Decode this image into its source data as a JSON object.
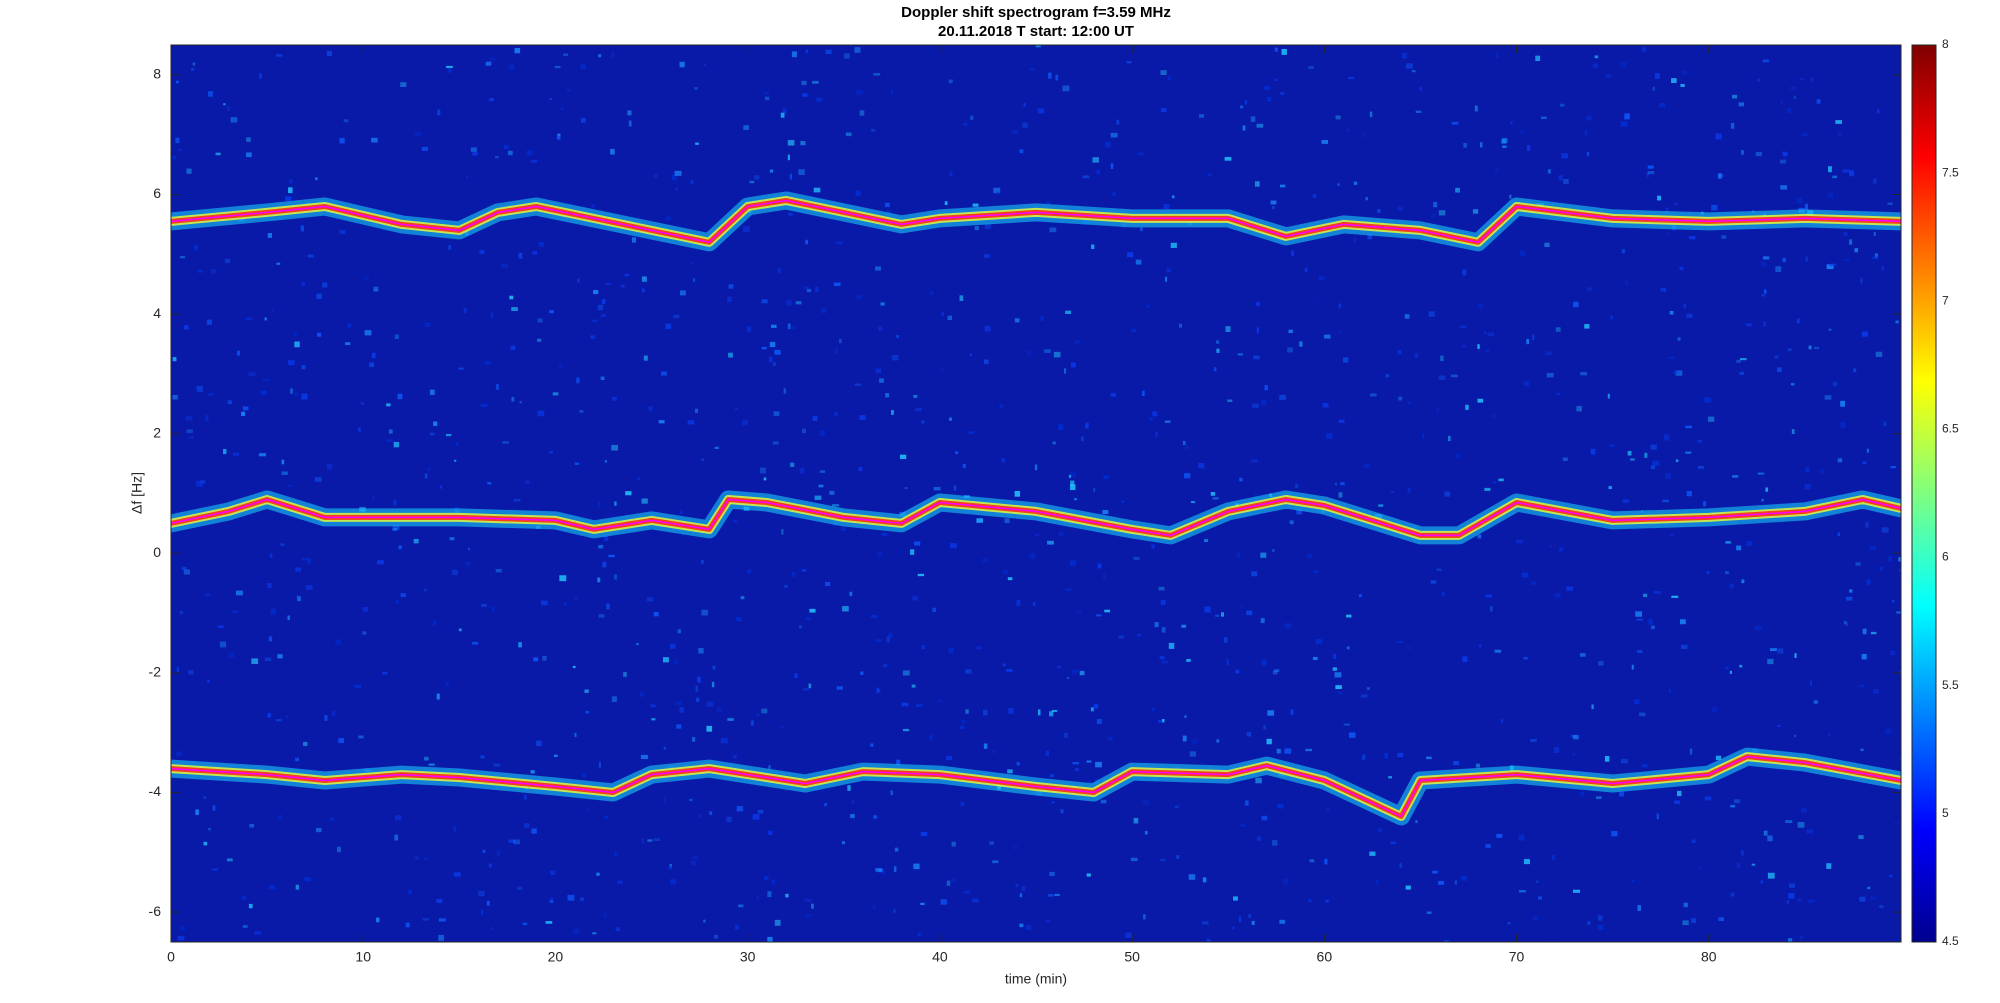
{
  "chart_data": {
    "type": "spectrogram",
    "title": "Doppler shift spectrogram f=3.59 MHz",
    "subtitle": "20.11.2018   T start: 12:00 UT",
    "x_label": "time (min)",
    "y_label": "Δf [Hz]",
    "xlim": [
      0,
      90
    ],
    "xticks": [
      0,
      10,
      20,
      30,
      40,
      50,
      60,
      70,
      80
    ],
    "ylim": [
      -6.5,
      8.5
    ],
    "yticks": [
      -6,
      -4,
      -2,
      0,
      2,
      4,
      6,
      8
    ],
    "colormap": "jet",
    "clim": [
      4.5,
      8
    ],
    "cticks": [
      4.5,
      5,
      5.5,
      6,
      6.5,
      7,
      7.5,
      8
    ],
    "series": [
      {
        "color": "#ff00ff",
        "x": [
          0,
          5,
          8,
          12,
          15,
          17,
          19,
          22,
          25,
          28,
          30,
          32,
          35,
          38,
          40,
          45,
          50,
          55,
          58,
          61,
          65,
          68,
          70,
          75,
          80,
          85,
          90
        ],
        "values": [
          5.55,
          5.7,
          5.8,
          5.5,
          5.4,
          5.7,
          5.8,
          5.6,
          5.4,
          5.2,
          5.8,
          5.9,
          5.7,
          5.5,
          5.6,
          5.7,
          5.6,
          5.6,
          5.3,
          5.5,
          5.4,
          5.2,
          5.8,
          5.6,
          5.55,
          5.6,
          5.55
        ]
      },
      {
        "color": "#ff00ff",
        "x": [
          0,
          3,
          5,
          8,
          10,
          15,
          20,
          22,
          25,
          28,
          29,
          31,
          35,
          38,
          40,
          45,
          50,
          52,
          55,
          58,
          60,
          65,
          67,
          70,
          75,
          80,
          85,
          88,
          90
        ],
        "values": [
          0.5,
          0.7,
          0.9,
          0.6,
          0.6,
          0.6,
          0.55,
          0.4,
          0.55,
          0.4,
          0.9,
          0.85,
          0.6,
          0.5,
          0.85,
          0.7,
          0.4,
          0.3,
          0.7,
          0.9,
          0.8,
          0.3,
          0.3,
          0.85,
          0.55,
          0.6,
          0.7,
          0.9,
          0.75
        ]
      },
      {
        "color": "#ff00ff",
        "x": [
          0,
          5,
          8,
          12,
          15,
          20,
          23,
          25,
          28,
          30,
          33,
          36,
          40,
          45,
          48,
          50,
          55,
          57,
          60,
          64,
          65,
          70,
          75,
          80,
          82,
          85,
          90
        ],
        "values": [
          -3.6,
          -3.7,
          -3.8,
          -3.7,
          -3.75,
          -3.9,
          -4.0,
          -3.7,
          -3.6,
          -3.7,
          -3.85,
          -3.65,
          -3.7,
          -3.9,
          -4.0,
          -3.65,
          -3.7,
          -3.55,
          -3.8,
          -4.4,
          -3.8,
          -3.7,
          -3.85,
          -3.7,
          -3.4,
          -3.5,
          -3.8
        ]
      }
    ]
  }
}
